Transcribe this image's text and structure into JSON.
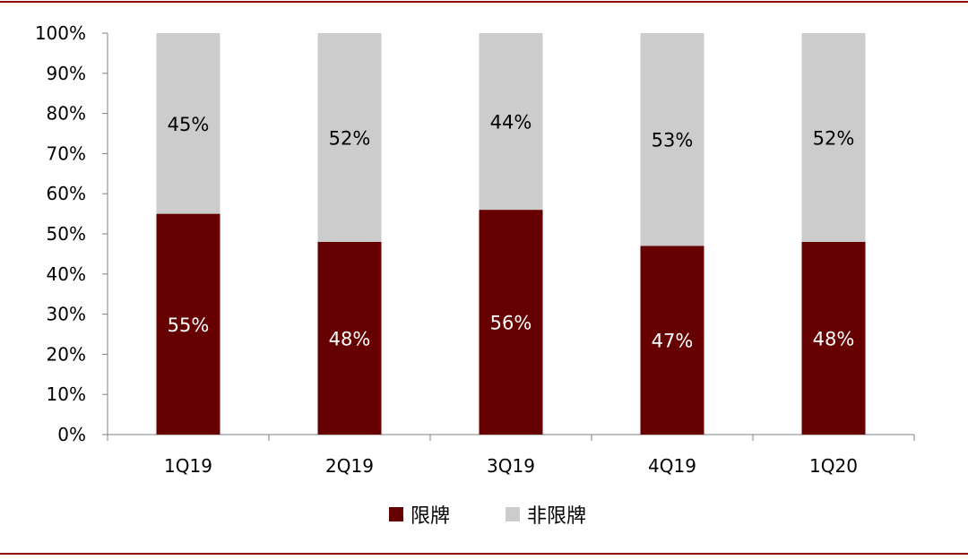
{
  "chart_data": {
    "type": "bar",
    "stacked": true,
    "percent_stacked": true,
    "categories": [
      "1Q19",
      "2Q19",
      "3Q19",
      "4Q19",
      "1Q20"
    ],
    "series": [
      {
        "name": "限牌",
        "values": [
          55,
          48,
          56,
          47,
          48
        ],
        "labels": [
          "55%",
          "48%",
          "56%",
          "47%",
          "48%"
        ],
        "color": "#660000",
        "label_color": "#ffffff"
      },
      {
        "name": "非限牌",
        "values": [
          45,
          52,
          44,
          53,
          52
        ],
        "labels": [
          "45%",
          "52%",
          "44%",
          "53%",
          "52%"
        ],
        "color": "#cccccc",
        "label_color": "#000000"
      }
    ],
    "y_ticks": [
      "0%",
      "10%",
      "20%",
      "30%",
      "40%",
      "50%",
      "60%",
      "70%",
      "80%",
      "90%",
      "100%"
    ],
    "ylim": [
      0,
      100
    ],
    "grid": false,
    "legend_position": "bottom",
    "frame_color": "#8b0000"
  }
}
